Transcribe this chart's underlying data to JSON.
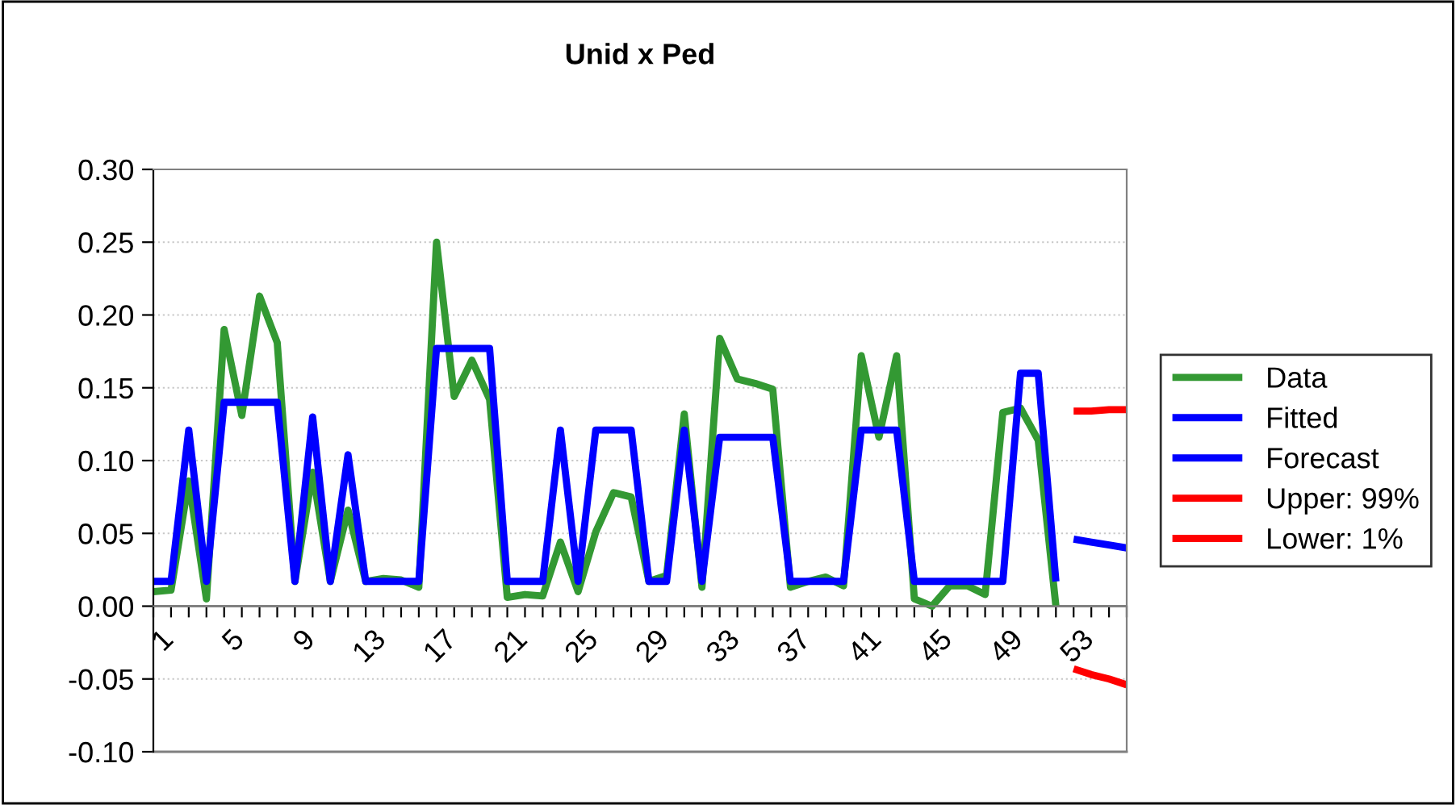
{
  "chart_data": {
    "type": "line",
    "title": "Unid x Ped",
    "categories": [
      "1",
      null,
      null,
      null,
      "5",
      null,
      null,
      null,
      "9",
      null,
      null,
      null,
      "13",
      null,
      null,
      null,
      "17",
      null,
      null,
      null,
      "21",
      null,
      null,
      null,
      "25",
      null,
      null,
      null,
      "29",
      null,
      null,
      null,
      "33",
      null,
      null,
      null,
      "37",
      null,
      null,
      null,
      "41",
      null,
      null,
      null,
      "45",
      null,
      null,
      null,
      "49",
      null,
      null,
      null,
      "53",
      null,
      null,
      null
    ],
    "series": [
      {
        "name": "Data",
        "color": "#339933",
        "values": [
          0.01,
          0.011,
          0.086,
          0.005,
          0.19,
          0.131,
          0.213,
          0.181,
          0.017,
          0.092,
          0.017,
          0.066,
          0.017,
          0.019,
          0.018,
          0.013,
          0.25,
          0.144,
          0.169,
          0.142,
          0.006,
          0.008,
          0.007,
          0.044,
          0.01,
          0.051,
          0.078,
          0.075,
          0.017,
          0.021,
          0.132,
          0.013,
          0.184,
          0.156,
          0.153,
          0.149,
          0.013,
          0.017,
          0.02,
          0.014,
          0.172,
          0.116,
          0.172,
          0.005,
          0.0,
          0.014,
          0.014,
          0.008,
          0.133,
          0.136,
          0.114,
          0.0,
          null,
          null,
          null,
          null
        ]
      },
      {
        "name": "Fitted",
        "color": "#0000ff",
        "values": [
          0.017,
          0.017,
          0.121,
          0.017,
          0.14,
          0.14,
          0.14,
          0.14,
          0.017,
          0.13,
          0.017,
          0.104,
          0.017,
          0.017,
          0.017,
          0.017,
          0.177,
          0.177,
          0.177,
          0.177,
          0.017,
          0.017,
          0.017,
          0.121,
          0.017,
          0.121,
          0.121,
          0.121,
          0.017,
          0.017,
          0.121,
          0.017,
          0.116,
          0.116,
          0.116,
          0.116,
          0.017,
          0.017,
          0.017,
          0.017,
          0.121,
          0.121,
          0.121,
          0.017,
          0.017,
          0.017,
          0.017,
          0.017,
          0.017,
          0.16,
          0.16,
          0.017,
          null,
          null,
          null,
          null
        ]
      },
      {
        "name": "Forecast",
        "color": "#0000ff",
        "values": [
          null,
          null,
          null,
          null,
          null,
          null,
          null,
          null,
          null,
          null,
          null,
          null,
          null,
          null,
          null,
          null,
          null,
          null,
          null,
          null,
          null,
          null,
          null,
          null,
          null,
          null,
          null,
          null,
          null,
          null,
          null,
          null,
          null,
          null,
          null,
          null,
          null,
          null,
          null,
          null,
          null,
          null,
          null,
          null,
          null,
          null,
          null,
          null,
          null,
          null,
          null,
          null,
          0.046,
          0.044,
          0.042,
          0.04
        ]
      },
      {
        "name": "Upper: 99%",
        "color": "#ff0000",
        "values": [
          null,
          null,
          null,
          null,
          null,
          null,
          null,
          null,
          null,
          null,
          null,
          null,
          null,
          null,
          null,
          null,
          null,
          null,
          null,
          null,
          null,
          null,
          null,
          null,
          null,
          null,
          null,
          null,
          null,
          null,
          null,
          null,
          null,
          null,
          null,
          null,
          null,
          null,
          null,
          null,
          null,
          null,
          null,
          null,
          null,
          null,
          null,
          null,
          null,
          null,
          null,
          null,
          0.134,
          0.134,
          0.135,
          0.135
        ]
      },
      {
        "name": "Lower: 1%",
        "color": "#ff0000",
        "values": [
          null,
          null,
          null,
          null,
          null,
          null,
          null,
          null,
          null,
          null,
          null,
          null,
          null,
          null,
          null,
          null,
          null,
          null,
          null,
          null,
          null,
          null,
          null,
          null,
          null,
          null,
          null,
          null,
          null,
          null,
          null,
          null,
          null,
          null,
          null,
          null,
          null,
          null,
          null,
          null,
          null,
          null,
          null,
          null,
          null,
          null,
          null,
          null,
          null,
          null,
          null,
          null,
          -0.043,
          -0.047,
          -0.05,
          -0.054
        ]
      }
    ],
    "ylim": [
      -0.1,
      0.3
    ],
    "yticks": [
      {
        "value": -0.1,
        "label": "-0.10"
      },
      {
        "value": -0.05,
        "label": "-0.05"
      },
      {
        "value": 0,
        "label": "0.00"
      },
      {
        "value": 0.05,
        "label": "0.05"
      },
      {
        "value": 0.1,
        "label": "0.10"
      },
      {
        "value": 0.15,
        "label": "0.15"
      },
      {
        "value": 0.2,
        "label": "0.20"
      },
      {
        "value": 0.25,
        "label": "0.25"
      },
      {
        "value": 0.3,
        "label": "0.30"
      }
    ],
    "grid": "y",
    "legend": "right",
    "marker": "none",
    "line_style": "solid"
  }
}
